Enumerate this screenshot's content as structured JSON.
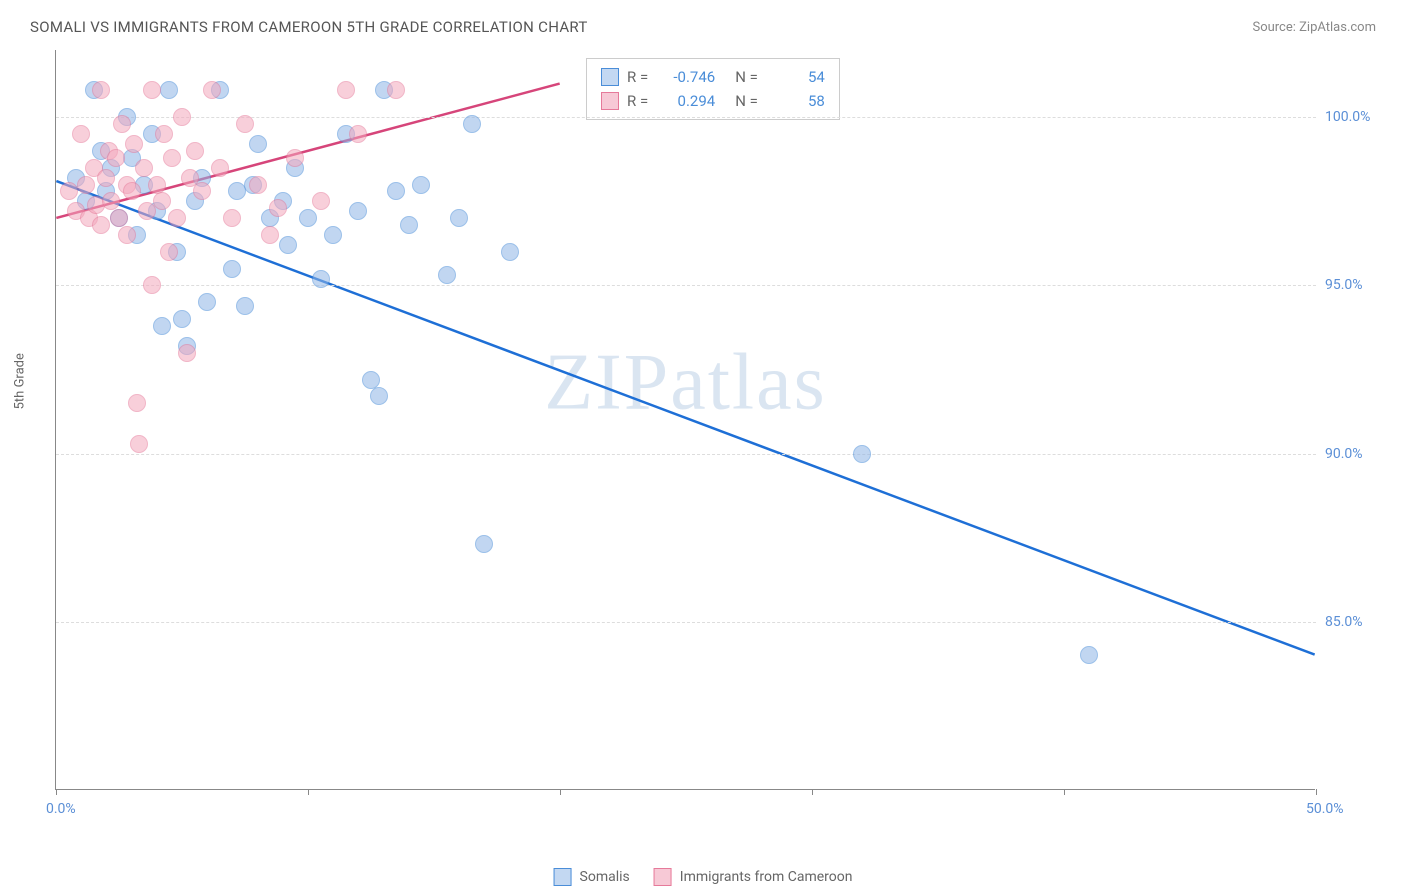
{
  "title": "SOMALI VS IMMIGRANTS FROM CAMEROON 5TH GRADE CORRELATION CHART",
  "source": "Source: ZipAtlas.com",
  "watermark": "ZIPatlas",
  "chart": {
    "type": "scatter",
    "y_axis_title": "5th Grade",
    "xlim": [
      0,
      50
    ],
    "ylim": [
      80,
      102
    ],
    "x_ticks": [
      0,
      10,
      20,
      30,
      40,
      50
    ],
    "x_tick_labels": {
      "0": "0.0%",
      "50": "50.0%"
    },
    "y_ticks": [
      85,
      90,
      95,
      100
    ],
    "y_tick_labels": {
      "85": "85.0%",
      "90": "90.0%",
      "95": "95.0%",
      "100": "100.0%"
    },
    "background_color": "#ffffff",
    "grid_color": "#dddddd",
    "grid_style": "dashed",
    "axis_color": "#888888",
    "marker_radius": 9,
    "marker_opacity": 0.55,
    "series": [
      {
        "name": "Somalis",
        "fill_color": "#8fb5e6",
        "stroke_color": "#4a8dd8",
        "trend_color": "#1e6fd6",
        "trend_width": 2.5,
        "R": "-0.746",
        "N": "54",
        "trend": {
          "x1": 0,
          "y1": 98.1,
          "x2": 50,
          "y2": 84.0
        },
        "points": [
          [
            0.8,
            98.2
          ],
          [
            1.2,
            97.5
          ],
          [
            1.5,
            100.8
          ],
          [
            1.8,
            99.0
          ],
          [
            2.0,
            97.8
          ],
          [
            2.2,
            98.5
          ],
          [
            2.5,
            97.0
          ],
          [
            2.8,
            100.0
          ],
          [
            3.0,
            98.8
          ],
          [
            3.2,
            96.5
          ],
          [
            3.5,
            98.0
          ],
          [
            3.8,
            99.5
          ],
          [
            4.0,
            97.2
          ],
          [
            4.2,
            93.8
          ],
          [
            4.5,
            100.8
          ],
          [
            4.8,
            96.0
          ],
          [
            5.0,
            94.0
          ],
          [
            5.2,
            93.2
          ],
          [
            5.5,
            97.5
          ],
          [
            5.8,
            98.2
          ],
          [
            6.0,
            94.5
          ],
          [
            6.5,
            100.8
          ],
          [
            7.0,
            95.5
          ],
          [
            7.2,
            97.8
          ],
          [
            7.5,
            94.4
          ],
          [
            7.8,
            98.0
          ],
          [
            8.0,
            99.2
          ],
          [
            8.5,
            97.0
          ],
          [
            9.0,
            97.5
          ],
          [
            9.2,
            96.2
          ],
          [
            9.5,
            98.5
          ],
          [
            10.0,
            97.0
          ],
          [
            10.5,
            95.2
          ],
          [
            11.0,
            96.5
          ],
          [
            11.5,
            99.5
          ],
          [
            12.0,
            97.2
          ],
          [
            12.5,
            92.2
          ],
          [
            12.8,
            91.7
          ],
          [
            13.0,
            100.8
          ],
          [
            13.5,
            97.8
          ],
          [
            14.0,
            96.8
          ],
          [
            14.5,
            98.0
          ],
          [
            15.5,
            95.3
          ],
          [
            16.0,
            97.0
          ],
          [
            16.5,
            99.8
          ],
          [
            17.0,
            87.3
          ],
          [
            18.0,
            96.0
          ],
          [
            32.0,
            90.0
          ],
          [
            41.0,
            84.0
          ]
        ]
      },
      {
        "name": "Immigrants from Cameroon",
        "fill_color": "#f4a8bd",
        "stroke_color": "#e67a9a",
        "trend_color": "#d6457a",
        "trend_width": 2.5,
        "R": "0.294",
        "N": "58",
        "trend": {
          "x1": 0,
          "y1": 97.0,
          "x2": 20,
          "y2": 101.0
        },
        "points": [
          [
            0.5,
            97.8
          ],
          [
            0.8,
            97.2
          ],
          [
            1.0,
            99.5
          ],
          [
            1.2,
            98.0
          ],
          [
            1.3,
            97.0
          ],
          [
            1.5,
            98.5
          ],
          [
            1.6,
            97.4
          ],
          [
            1.8,
            100.8
          ],
          [
            1.8,
            96.8
          ],
          [
            2.0,
            98.2
          ],
          [
            2.1,
            99.0
          ],
          [
            2.2,
            97.5
          ],
          [
            2.4,
            98.8
          ],
          [
            2.5,
            97.0
          ],
          [
            2.6,
            99.8
          ],
          [
            2.8,
            96.5
          ],
          [
            2.8,
            98.0
          ],
          [
            3.0,
            97.8
          ],
          [
            3.1,
            99.2
          ],
          [
            3.2,
            91.5
          ],
          [
            3.3,
            90.3
          ],
          [
            3.5,
            98.5
          ],
          [
            3.6,
            97.2
          ],
          [
            3.8,
            95.0
          ],
          [
            3.8,
            100.8
          ],
          [
            4.0,
            98.0
          ],
          [
            4.2,
            97.5
          ],
          [
            4.3,
            99.5
          ],
          [
            4.5,
            96.0
          ],
          [
            4.6,
            98.8
          ],
          [
            4.8,
            97.0
          ],
          [
            5.0,
            100.0
          ],
          [
            5.2,
            93.0
          ],
          [
            5.3,
            98.2
          ],
          [
            5.5,
            99.0
          ],
          [
            5.8,
            97.8
          ],
          [
            6.2,
            100.8
          ],
          [
            6.5,
            98.5
          ],
          [
            7.0,
            97.0
          ],
          [
            7.5,
            99.8
          ],
          [
            8.0,
            98.0
          ],
          [
            8.5,
            96.5
          ],
          [
            8.8,
            97.3
          ],
          [
            9.5,
            98.8
          ],
          [
            10.5,
            97.5
          ],
          [
            11.5,
            100.8
          ],
          [
            12.0,
            99.5
          ],
          [
            13.5,
            100.8
          ]
        ]
      }
    ]
  },
  "legend_bottom": [
    {
      "label": "Somalis",
      "swatch": "blue"
    },
    {
      "label": "Immigrants from Cameroon",
      "swatch": "pink"
    }
  ]
}
